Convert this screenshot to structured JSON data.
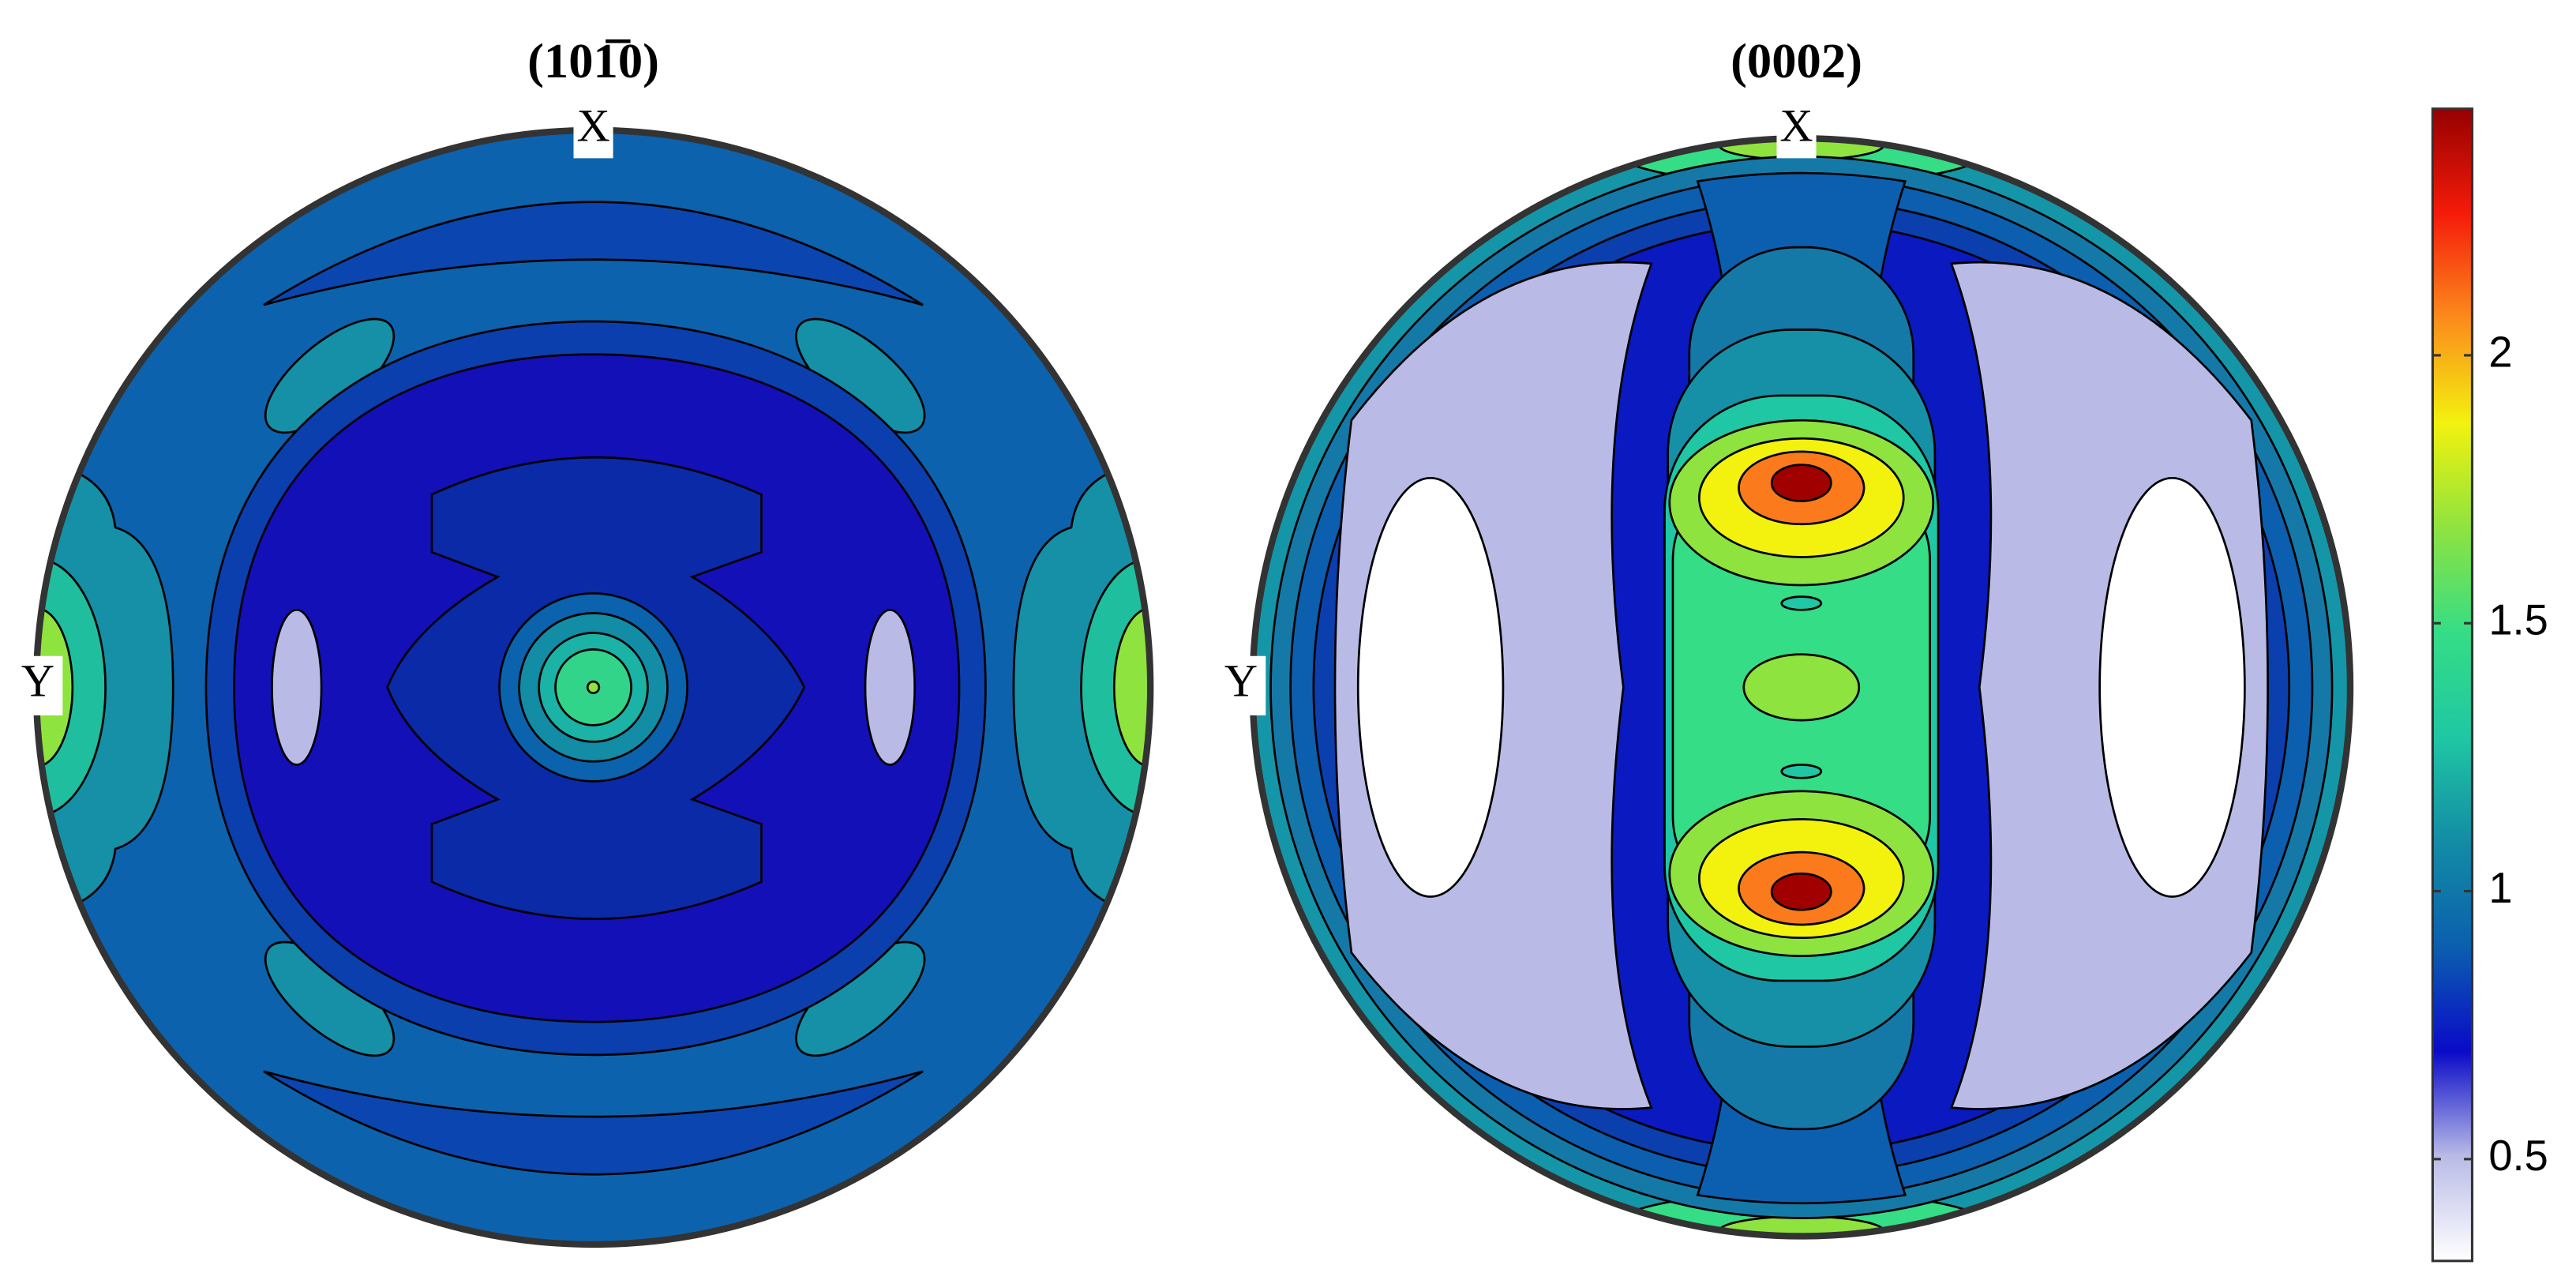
{
  "chart_data": {
    "type": "pole_figure",
    "panels": [
      {
        "title": "(101̅0)",
        "x_label": "X",
        "y_label": "Y"
      },
      {
        "title": "(0002)",
        "x_label": "X",
        "y_label": "Y"
      }
    ],
    "colorbar": {
      "ylim": [
        0.31,
        2.46
      ],
      "yticks": [
        0.5,
        1,
        1.5,
        2
      ],
      "colors": [
        "#ffffff",
        "#b9bbe6",
        "#0a0ac8",
        "#0b5fae",
        "#138ca5",
        "#1fc7a4",
        "#35dd86",
        "#8fe33f",
        "#f2f20e",
        "#fb8b1c",
        "#f51b0a",
        "#960000"
      ]
    }
  }
}
